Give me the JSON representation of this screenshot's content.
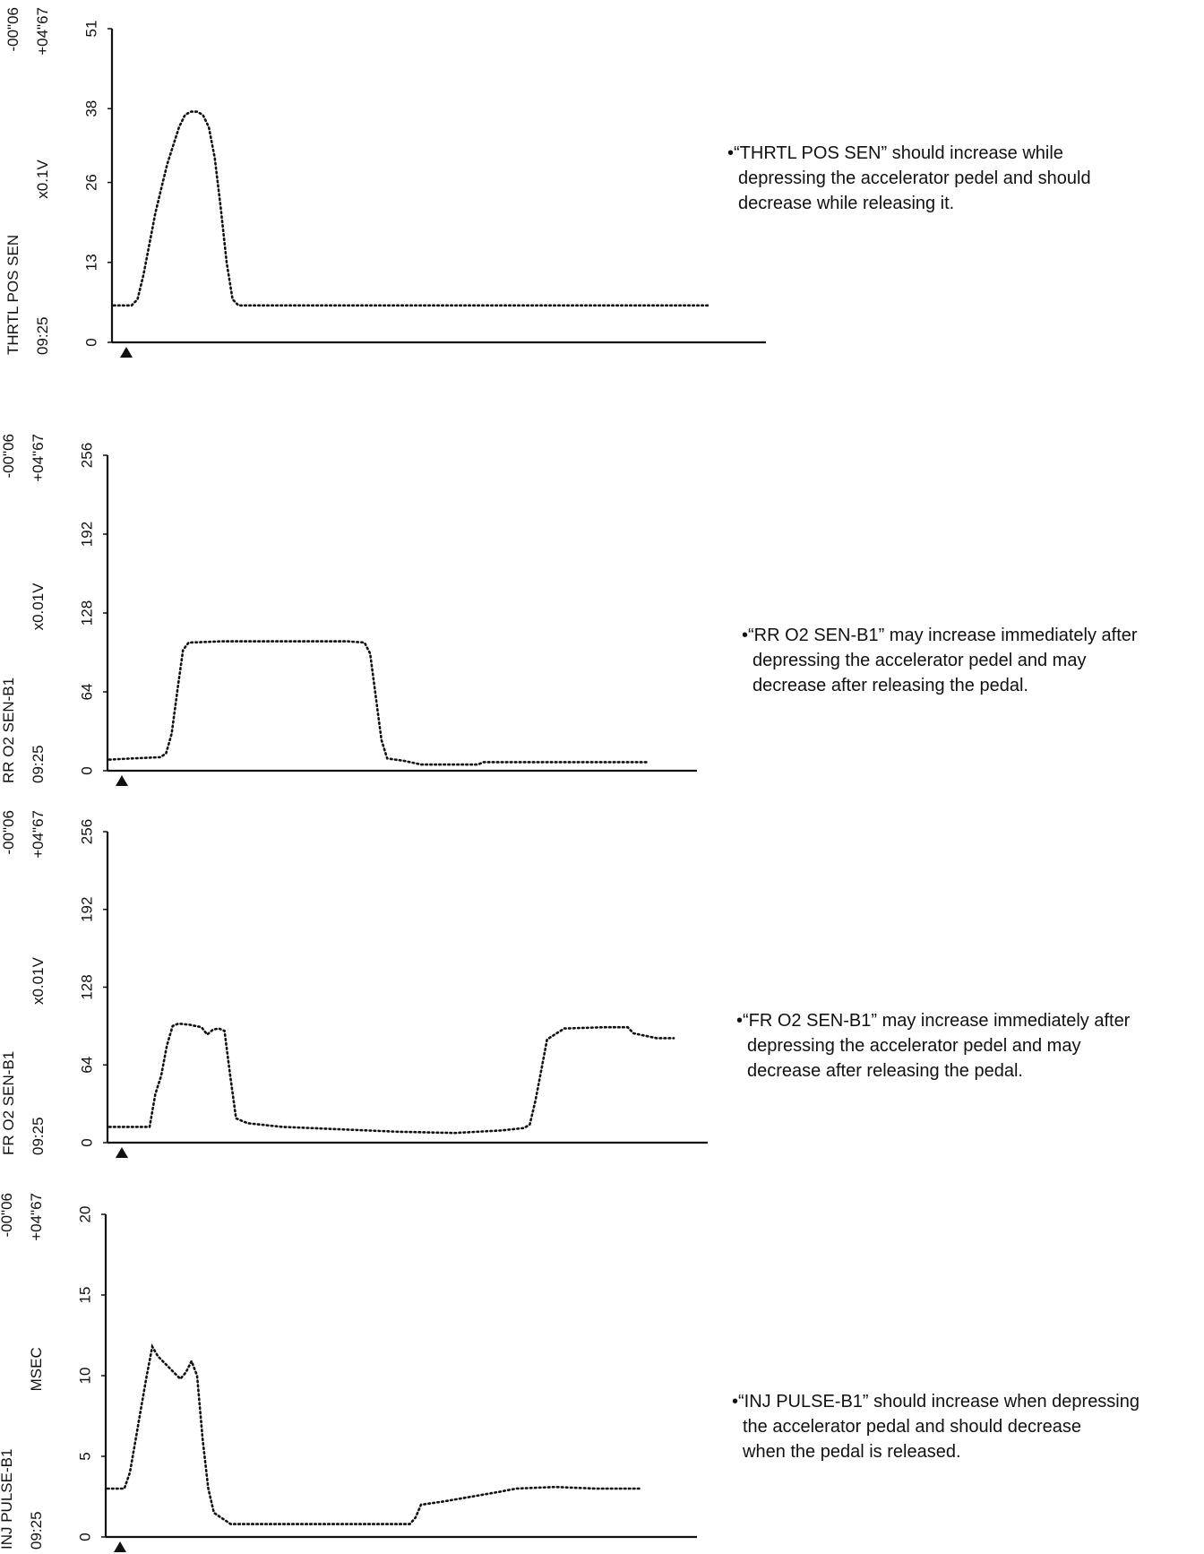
{
  "chart_data": [
    {
      "type": "line",
      "name_label": "THRTL POS SEN",
      "time_label": "09:25",
      "unit": "x0.1V",
      "timer_neg": "-00\"06",
      "timer_pos": "+04\"67",
      "ylim": [
        0,
        51
      ],
      "yticks": [
        "0",
        "13",
        "26",
        "38",
        "51"
      ],
      "ytick_values": [
        0,
        13,
        26,
        38,
        51
      ],
      "xlim": [
        0,
        100
      ],
      "series": [
        {
          "values": [
            [
              0,
              6
            ],
            [
              3,
              6
            ],
            [
              4,
              7
            ],
            [
              5,
              11
            ],
            [
              6,
              16
            ],
            [
              7,
              21
            ],
            [
              8,
              25
            ],
            [
              9,
              29
            ],
            [
              10,
              32
            ],
            [
              11,
              35
            ],
            [
              12,
              37
            ],
            [
              13,
              37.5
            ],
            [
              14,
              37.5
            ],
            [
              15,
              37
            ],
            [
              16,
              35
            ],
            [
              17,
              30
            ],
            [
              18,
              22
            ],
            [
              19,
              13
            ],
            [
              20,
              7
            ],
            [
              21,
              6
            ],
            [
              100,
              6
            ]
          ]
        }
      ],
      "note": [
        "•“THRTL POS SEN” should increase while",
        "depressing the accelerator pedel and should",
        "decrease while releasing it."
      ]
    },
    {
      "type": "line",
      "name_label": "RR O2 SEN-B1",
      "time_label": "09:25",
      "unit": "x0.01V",
      "timer_neg": "-00\"06",
      "timer_pos": "+04\"67",
      "ylim": [
        0,
        256
      ],
      "yticks": [
        "0",
        "64",
        "128",
        "192",
        "256"
      ],
      "ytick_values": [
        0,
        64,
        128,
        192,
        256
      ],
      "xlim": [
        0,
        100
      ],
      "series": [
        {
          "values": [
            [
              0,
              9
            ],
            [
              4,
              10
            ],
            [
              9,
              11
            ],
            [
              10,
              14
            ],
            [
              11,
              30
            ],
            [
              12,
              65
            ],
            [
              13,
              98
            ],
            [
              14,
              104
            ],
            [
              20,
              105
            ],
            [
              30,
              105
            ],
            [
              42,
              105
            ],
            [
              45,
              104
            ],
            [
              46,
              95
            ],
            [
              47,
              60
            ],
            [
              48,
              25
            ],
            [
              49,
              10
            ],
            [
              52,
              8
            ],
            [
              55,
              5
            ],
            [
              65,
              5
            ],
            [
              66,
              7
            ],
            [
              95,
              7
            ]
          ]
        }
      ],
      "note": [
        "•“RR O2 SEN-B1” may increase immediately after",
        "depressing the accelerator pedel and may",
        "decrease after releasing the pedal."
      ]
    },
    {
      "type": "line",
      "name_label": "FR O2 SEN-B1",
      "time_label": "09:25",
      "unit": "x0.01V",
      "timer_neg": "-00\"06",
      "timer_pos": "+04\"67",
      "ylim": [
        0,
        256
      ],
      "yticks": [
        "0",
        "64",
        "128",
        "192",
        "256"
      ],
      "ytick_values": [
        0,
        64,
        128,
        192,
        256
      ],
      "xlim": [
        0,
        100
      ],
      "series": [
        {
          "values": [
            [
              0,
              13
            ],
            [
              7,
              13
            ],
            [
              8,
              40
            ],
            [
              9,
              55
            ],
            [
              10,
              80
            ],
            [
              11,
              96
            ],
            [
              12,
              98
            ],
            [
              14,
              97
            ],
            [
              16,
              95
            ],
            [
              17,
              89
            ],
            [
              18,
              93
            ],
            [
              19,
              94
            ],
            [
              20,
              92
            ],
            [
              21,
              55
            ],
            [
              22,
              20
            ],
            [
              24,
              16
            ],
            [
              30,
              13
            ],
            [
              40,
              11
            ],
            [
              50,
              9
            ],
            [
              60,
              8
            ],
            [
              68,
              10
            ],
            [
              72,
              12
            ],
            [
              73,
              15
            ],
            [
              74,
              35
            ],
            [
              75,
              60
            ],
            [
              76,
              85
            ],
            [
              77,
              88
            ],
            [
              79,
              94
            ],
            [
              86,
              95
            ],
            [
              90,
              95
            ],
            [
              91,
              90
            ],
            [
              95,
              86
            ],
            [
              98,
              86
            ]
          ]
        }
      ],
      "note": [
        "•“FR O2 SEN-B1” may increase immediately after",
        "depressing the accelerator pedel and may",
        "decrease after releasing the pedal."
      ]
    },
    {
      "type": "line",
      "name_label": "INJ PULSE-B1",
      "time_label": "09:25",
      "unit": "MSEC",
      "timer_neg": "-00\"06",
      "timer_pos": "+04\"67",
      "ylim": [
        0,
        20
      ],
      "yticks": [
        "0",
        "5",
        "10",
        "15",
        "20"
      ],
      "ytick_values": [
        0,
        5,
        10,
        15,
        20
      ],
      "xlim": [
        0,
        100
      ],
      "series": [
        {
          "values": [
            [
              0,
              3
            ],
            [
              3,
              3
            ],
            [
              4,
              4
            ],
            [
              5,
              6
            ],
            [
              6,
              8
            ],
            [
              7,
              10
            ],
            [
              8,
              11.8
            ],
            [
              9,
              11.2
            ],
            [
              11,
              10.5
            ],
            [
              13,
              9.8
            ],
            [
              14,
              10.2
            ],
            [
              15,
              10.9
            ],
            [
              16,
              10
            ],
            [
              17,
              6
            ],
            [
              18,
              3
            ],
            [
              19,
              1.5
            ],
            [
              22,
              0.8
            ],
            [
              54,
              0.8
            ],
            [
              55,
              1.2
            ],
            [
              56,
              2
            ],
            [
              60,
              2.2
            ],
            [
              65,
              2.5
            ],
            [
              70,
              2.8
            ],
            [
              73,
              3
            ],
            [
              80,
              3.1
            ],
            [
              87,
              3
            ],
            [
              95,
              3
            ]
          ]
        }
      ],
      "note": [
        "•“INJ PULSE-B1” should increase when depressing",
        "the accelerator pedal and should decrease",
        "when the pedal is released."
      ]
    }
  ]
}
